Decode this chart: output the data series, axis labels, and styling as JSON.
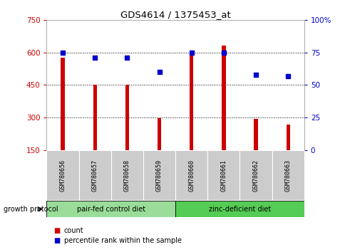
{
  "title": "GDS4614 / 1375453_at",
  "samples": [
    "GSM780656",
    "GSM780657",
    "GSM780658",
    "GSM780659",
    "GSM780660",
    "GSM780661",
    "GSM780662",
    "GSM780663"
  ],
  "counts": [
    578,
    450,
    453,
    298,
    588,
    632,
    292,
    268
  ],
  "percentiles": [
    75,
    71,
    71,
    60,
    75,
    75,
    58,
    57
  ],
  "bar_color": "#cc0000",
  "dot_color": "#0000cc",
  "ylim_left": [
    150,
    750
  ],
  "ylim_right": [
    0,
    100
  ],
  "yticks_left": [
    150,
    300,
    450,
    600,
    750
  ],
  "yticks_right": [
    0,
    25,
    50,
    75,
    100
  ],
  "groups": [
    {
      "label": "pair-fed control diet",
      "start": 0,
      "end": 4,
      "color": "#99dd99"
    },
    {
      "label": "zinc-deficient diet",
      "start": 4,
      "end": 8,
      "color": "#55cc55"
    }
  ],
  "group_label": "growth protocol",
  "legend_items": [
    {
      "label": "count",
      "color": "#cc0000"
    },
    {
      "label": "percentile rank within the sample",
      "color": "#0000cc"
    }
  ],
  "left_tick_color": "#cc0000",
  "right_tick_color": "#0000cc",
  "background_color": "#ffffff",
  "tick_label_area_color": "#cccccc",
  "grid_dotted_vals": [
    300,
    450,
    600
  ]
}
